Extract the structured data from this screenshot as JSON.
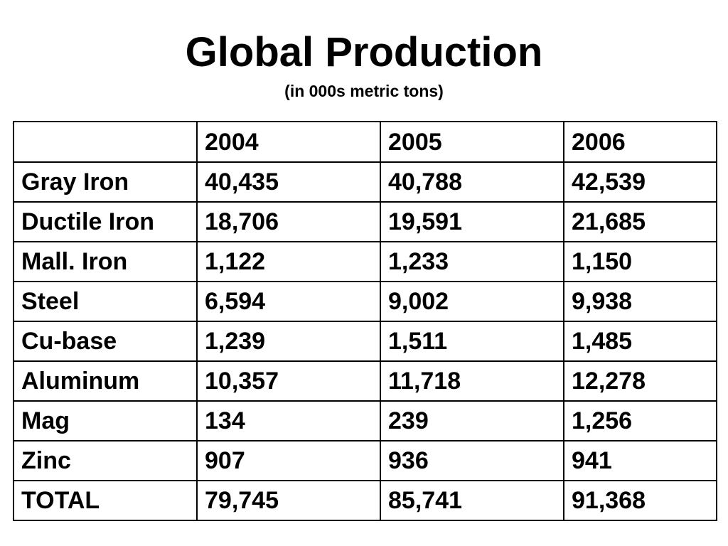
{
  "header": {
    "title": "Global Production",
    "subtitle": "(in 000s metric tons)"
  },
  "table": {
    "columns": [
      "2004",
      "2005",
      "2006"
    ],
    "rows": [
      [
        "Gray Iron",
        "40,435",
        "40,788",
        "42,539"
      ],
      [
        "Ductile Iron",
        "18,706",
        "19,591",
        "21,685"
      ],
      [
        "Mall. Iron",
        "1,122",
        "1,233",
        "1,150"
      ],
      [
        "Steel",
        "6,594",
        "9,002",
        "9,938"
      ],
      [
        "Cu-base",
        "1,239",
        "1,511",
        "1,485"
      ],
      [
        "Aluminum",
        "10,357",
        "11,718",
        "12,278"
      ],
      [
        "Mag",
        "134",
        "239",
        "1,256"
      ],
      [
        "Zinc",
        "907",
        "936",
        "941"
      ],
      [
        "TOTAL",
        "79,745",
        "85,741",
        "91,368"
      ]
    ]
  }
}
